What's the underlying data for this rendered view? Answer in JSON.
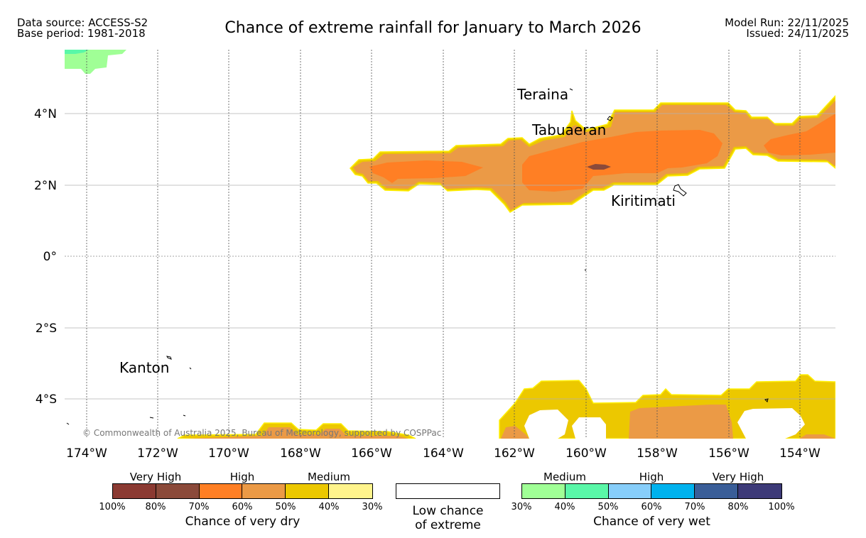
{
  "header": {
    "data_source": "Data source: ACCESS-S2",
    "base_period": "Base period: 1981-2018",
    "model_run": "Model Run: 22/11/2025",
    "issued": "Issued: 24/11/2025",
    "title": "Chance of extreme rainfall for January to March 2026"
  },
  "map": {
    "lon_labels": [
      "174°W",
      "172°W",
      "170°W",
      "168°W",
      "166°W",
      "164°W",
      "162°W",
      "160°W",
      "158°W",
      "156°W",
      "154°W"
    ],
    "lat_labels": [
      "4°N",
      "2°N",
      "0°",
      "2°S",
      "4°S"
    ],
    "places": {
      "teraina": "Teraina",
      "tabuaeran": "Tabuaeran",
      "kiritimati": "Kiritimati",
      "kanton": "Kanton"
    },
    "copyright": "© Commonwealth of Australia 2025, Bureau of Meteorology, supported by COSPPac"
  },
  "legend": {
    "dry": {
      "categories": [
        "Very High",
        "High",
        "Medium"
      ],
      "percentages": [
        "100%",
        "80%",
        "70%",
        "60%",
        "50%",
        "40%",
        "30%"
      ],
      "colors": [
        "#8b3a32",
        "#8b4a3a",
        "#ff7f24",
        "#eb9a46",
        "#ecc800",
        "#fff48c"
      ],
      "title": "Chance of very dry"
    },
    "low": {
      "line1": "Low chance",
      "line2": "of extreme"
    },
    "wet": {
      "categories": [
        "Medium",
        "High",
        "Very High"
      ],
      "percentages": [
        "30%",
        "40%",
        "50%",
        "60%",
        "70%",
        "80%",
        "100%"
      ],
      "colors": [
        "#a0ff96",
        "#5af7a8",
        "#87cefa",
        "#00b2ee",
        "#3a5e98",
        "#3d3a78"
      ],
      "title": "Chance of very wet"
    }
  }
}
